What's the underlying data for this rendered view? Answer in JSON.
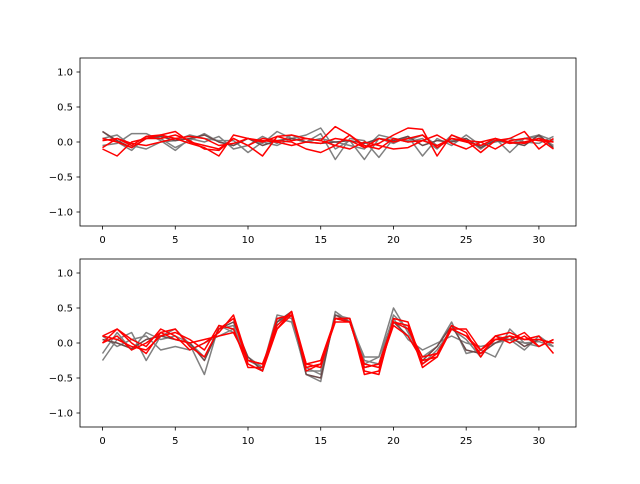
{
  "chart_data": [
    {
      "type": "line",
      "xlim": [
        -1.55,
        32.55
      ],
      "ylim": [
        -1.2,
        1.2
      ],
      "xticks": [
        0,
        5,
        10,
        15,
        20,
        25,
        30
      ],
      "xtick_labels": [
        "0",
        "5",
        "10",
        "15",
        "20",
        "25",
        "30"
      ],
      "yticks": [
        1.0,
        0.5,
        0.0,
        -0.5,
        -1.0
      ],
      "ytick_labels": [
        "1.0",
        "0.5",
        "0.0",
        "−0.5",
        "−1.0"
      ],
      "grid": false,
      "x": [
        0,
        1,
        2,
        3,
        4,
        5,
        6,
        7,
        8,
        9,
        10,
        11,
        12,
        13,
        14,
        15,
        16,
        17,
        18,
        19,
        20,
        21,
        22,
        23,
        24,
        25,
        26,
        27,
        28,
        29,
        30,
        31
      ],
      "series": [
        {
          "color": "#808080",
          "values": [
            0.15,
            0.0,
            -0.12,
            0.08,
            0.05,
            -0.08,
            0.02,
            0.12,
            0.0,
            -0.05,
            0.05,
            -0.02,
            0.15,
            0.05,
            0.1,
            0.2,
            -0.1,
            0.02,
            -0.25,
            0.05,
            -0.02,
            0.08,
            -0.2,
            0.05,
            -0.05,
            0.1,
            -0.05,
            0.02,
            -0.02,
            0.05,
            0.08,
            -0.05
          ]
        },
        {
          "color": "#808080",
          "values": [
            -0.05,
            -0.02,
            0.12,
            0.12,
            0.02,
            -0.12,
            0.05,
            0.0,
            0.08,
            -0.1,
            -0.05,
            0.08,
            -0.02,
            0.1,
            0.0,
            0.12,
            -0.25,
            0.05,
            0.02,
            -0.22,
            0.05,
            0.02,
            0.1,
            -0.05,
            0.02,
            0.05,
            -0.1,
            0.05,
            -0.15,
            0.05,
            0.1,
            0.02
          ]
        },
        {
          "color": "#808080",
          "values": [
            0.05,
            0.1,
            -0.05,
            -0.1,
            0.0,
            0.02,
            0.1,
            0.05,
            0.02,
            0.02,
            -0.15,
            0.0,
            -0.05,
            0.05,
            0.0,
            0.05,
            0.0,
            -0.05,
            -0.1,
            0.1,
            0.05,
            0.0,
            0.05,
            -0.1,
            0.1,
            0.0,
            -0.05,
            0.0,
            0.05,
            0.0,
            -0.02,
            0.08
          ]
        },
        {
          "color": "#6b4a4a",
          "values": [
            0.15,
            0.02,
            -0.08,
            0.05,
            0.08,
            0.02,
            0.05,
            0.1,
            0.0,
            -0.05,
            0.05,
            -0.05,
            0.02,
            0.05,
            0.0,
            -0.02,
            0.0,
            0.02,
            -0.02,
            0.05,
            0.02,
            0.08,
            -0.05,
            0.02,
            0.0,
            0.05,
            -0.08,
            0.02,
            0.0,
            -0.05,
            0.1,
            -0.08
          ]
        },
        {
          "color": "#ff0000",
          "values": [
            -0.1,
            -0.2,
            0.0,
            0.05,
            0.05,
            0.1,
            0.02,
            -0.1,
            -0.12,
            0.05,
            -0.05,
            -0.2,
            0.08,
            0.02,
            0.05,
            0.02,
            0.22,
            0.1,
            -0.08,
            -0.02,
            0.1,
            0.2,
            0.18,
            -0.2,
            0.1,
            0.02,
            -0.15,
            0.02,
            0.05,
            0.15,
            -0.1,
            0.05
          ]
        },
        {
          "color": "#ff0000",
          "values": [
            0.05,
            0.0,
            -0.08,
            0.05,
            0.1,
            0.15,
            0.0,
            -0.05,
            -0.1,
            0.05,
            -0.05,
            0.05,
            0.02,
            0.0,
            -0.1,
            -0.15,
            -0.05,
            0.1,
            -0.05,
            -0.1,
            0.05,
            0.0,
            0.02,
            -0.05,
            0.05,
            0.0,
            -0.05,
            0.05,
            -0.02,
            0.0,
            0.05,
            -0.1
          ]
        },
        {
          "color": "#ff0000",
          "values": [
            -0.08,
            0.05,
            -0.05,
            0.08,
            0.1,
            0.05,
            -0.02,
            -0.08,
            -0.2,
            0.1,
            0.05,
            0.0,
            0.08,
            0.1,
            0.05,
            0.02,
            -0.05,
            -0.1,
            0.0,
            -0.05,
            -0.1,
            -0.08,
            0.02,
            0.1,
            -0.02,
            -0.1,
            0.0,
            -0.1,
            0.02,
            0.05,
            0.02,
            0.0
          ]
        },
        {
          "color": "#ff0000",
          "values": [
            0.02,
            0.05,
            -0.02,
            -0.05,
            0.0,
            0.05,
            0.08,
            0.05,
            -0.05,
            -0.02,
            0.05,
            0.02,
            0.0,
            -0.05,
            0.0,
            -0.02,
            0.05,
            0.02,
            -0.08,
            0.05,
            0.0,
            0.05,
            0.1,
            -0.08,
            0.05,
            0.02,
            0.0,
            0.05,
            0.0,
            -0.02,
            0.05,
            0.0
          ]
        }
      ]
    },
    {
      "type": "line",
      "xlim": [
        -1.55,
        32.55
      ],
      "ylim": [
        -1.2,
        1.2
      ],
      "xticks": [
        0,
        5,
        10,
        15,
        20,
        25,
        30
      ],
      "xtick_labels": [
        "0",
        "5",
        "10",
        "15",
        "20",
        "25",
        "30"
      ],
      "yticks": [
        1.0,
        0.5,
        0.0,
        -0.5,
        -1.0
      ],
      "ytick_labels": [
        "1.0",
        "0.5",
        "0.0",
        "−0.5",
        "−1.0"
      ],
      "grid": false,
      "x": [
        0,
        1,
        2,
        3,
        4,
        5,
        6,
        7,
        8,
        9,
        10,
        11,
        12,
        13,
        14,
        15,
        16,
        17,
        18,
        19,
        20,
        21,
        22,
        23,
        24,
        25,
        26,
        27,
        28,
        29,
        30,
        31
      ],
      "series": [
        {
          "color": "#808080",
          "values": [
            -0.25,
            0.05,
            0.15,
            -0.25,
            0.1,
            0.2,
            -0.02,
            -0.45,
            0.25,
            0.15,
            -0.25,
            -0.35,
            0.4,
            0.35,
            -0.45,
            -0.55,
            0.45,
            0.3,
            -0.3,
            -0.2,
            0.5,
            0.15,
            -0.2,
            -0.05,
            0.3,
            -0.15,
            -0.1,
            -0.2,
            0.2,
            0.0,
            -0.05,
            0.05
          ]
        },
        {
          "color": "#808080",
          "values": [
            -0.15,
            0.15,
            -0.1,
            0.15,
            0.05,
            0.1,
            0.0,
            -0.2,
            0.2,
            0.25,
            -0.3,
            -0.4,
            0.3,
            0.4,
            -0.35,
            -0.45,
            0.4,
            0.35,
            -0.25,
            -0.3,
            0.4,
            0.2,
            -0.3,
            -0.1,
            0.2,
            0.05,
            -0.2,
            0.1,
            0.05,
            -0.1,
            0.1,
            -0.05
          ]
        },
        {
          "color": "#808080",
          "values": [
            0.1,
            -0.05,
            0.05,
            0.1,
            -0.1,
            -0.05,
            -0.1,
            0.0,
            0.1,
            0.2,
            -0.2,
            -0.35,
            0.35,
            0.3,
            -0.4,
            -0.4,
            0.35,
            0.3,
            -0.2,
            -0.2,
            0.35,
            0.05,
            -0.1,
            0.0,
            0.1,
            0.0,
            -0.05,
            0.0,
            0.05,
            0.0,
            0.02,
            -0.05
          ]
        },
        {
          "color": "#6b4a4a",
          "values": [
            0.05,
            0.0,
            -0.08,
            0.05,
            0.1,
            0.05,
            0.0,
            -0.25,
            0.2,
            0.3,
            -0.2,
            -0.4,
            0.3,
            0.45,
            -0.45,
            -0.5,
            0.4,
            0.3,
            -0.35,
            -0.3,
            0.3,
            0.1,
            -0.25,
            -0.05,
            0.25,
            -0.1,
            -0.15,
            0.0,
            0.1,
            -0.05,
            0.05,
            0.0
          ]
        },
        {
          "color": "#ff0000",
          "values": [
            0.1,
            0.2,
            0.0,
            -0.15,
            0.15,
            0.2,
            -0.05,
            -0.2,
            0.2,
            0.35,
            -0.3,
            -0.4,
            0.2,
            0.45,
            -0.4,
            -0.3,
            0.35,
            0.35,
            -0.45,
            -0.4,
            0.3,
            0.25,
            -0.35,
            -0.2,
            0.25,
            0.15,
            -0.2,
            0.1,
            0.15,
            0.05,
            0.1,
            -0.15
          ]
        },
        {
          "color": "#ff0000",
          "values": [
            0.0,
            0.2,
            0.05,
            -0.05,
            0.2,
            0.1,
            -0.1,
            0.0,
            0.15,
            0.4,
            -0.25,
            -0.3,
            0.2,
            0.4,
            -0.3,
            -0.25,
            0.35,
            0.35,
            -0.4,
            -0.45,
            0.35,
            0.3,
            -0.3,
            -0.15,
            0.2,
            0.2,
            -0.1,
            0.05,
            0.05,
            0.15,
            -0.05,
            0.05
          ]
        },
        {
          "color": "#ff0000",
          "values": [
            0.1,
            0.05,
            -0.05,
            -0.1,
            0.1,
            0.15,
            0.05,
            -0.1,
            0.25,
            0.2,
            -0.35,
            -0.35,
            0.35,
            0.4,
            -0.35,
            -0.3,
            0.3,
            0.3,
            -0.3,
            -0.35,
            0.25,
            0.1,
            -0.25,
            -0.2,
            0.2,
            0.1,
            -0.15,
            0.05,
            0.1,
            0.05,
            0.05,
            0.0
          ]
        },
        {
          "color": "#ff0000",
          "values": [
            0.0,
            0.1,
            -0.1,
            0.0,
            0.15,
            0.05,
            0.0,
            0.05,
            0.1,
            0.15,
            -0.25,
            -0.3,
            0.25,
            0.45,
            -0.3,
            -0.35,
            0.35,
            0.3,
            -0.35,
            -0.3,
            0.3,
            0.2,
            -0.2,
            -0.15,
            0.2,
            0.1,
            -0.1,
            0.1,
            0.0,
            0.1,
            -0.05,
            0.05
          ]
        }
      ]
    }
  ]
}
